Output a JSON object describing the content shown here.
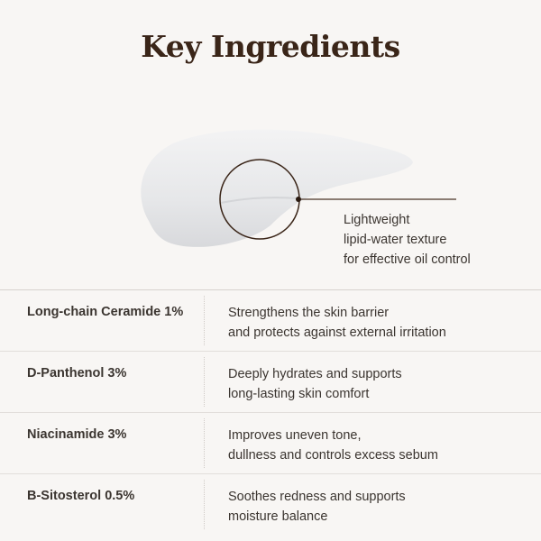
{
  "title": "Key Ingredients",
  "callout": {
    "lines": [
      "Lightweight",
      "lipid-water texture",
      "for effective oil control"
    ]
  },
  "ingredients": [
    {
      "name": "Long-chain Ceramide 1%",
      "desc": [
        "Strengthens the skin barrier",
        "and protects against external irritation"
      ]
    },
    {
      "name": "D-Panthenol 3%",
      "desc": [
        "Deeply hydrates and supports",
        "long-lasting skin comfort"
      ]
    },
    {
      "name": "Niacinamide 3%",
      "desc": [
        "Improves uneven tone,",
        "dullness and controls excess sebum"
      ]
    },
    {
      "name": "B-Sitosterol 0.5%",
      "desc": [
        "Soothes redness and supports",
        "moisture balance"
      ]
    }
  ],
  "colors": {
    "background": "#f8f6f4",
    "title": "#3a2518",
    "text": "#3b3530",
    "accent_line": "#4a3326"
  }
}
